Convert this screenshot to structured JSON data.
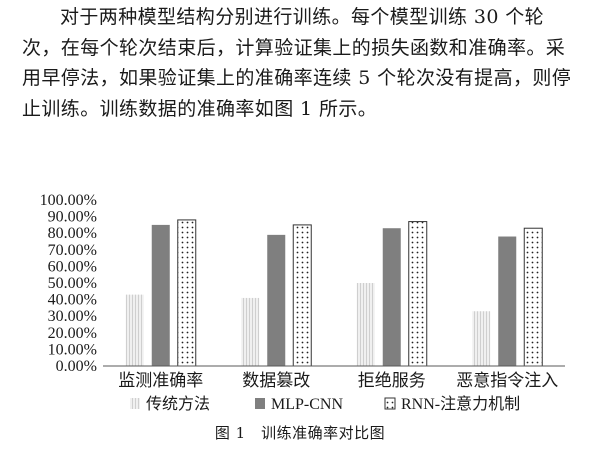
{
  "paragraph": "对于两种模型结构分别进行训练。每个模型训练 30 个轮次，在每个轮次结束后，计算验证集上的损失函数和准确率。采用早停法，如果验证集上的准确率连续 5 个轮次没有提高，则停止训练。训练数据的准确率如图 1 所示。",
  "caption": "图 1　训练准确率对比图",
  "colors": {
    "series0": "#e6e6e6",
    "series1": "#7f7f7f",
    "series2": "#ffffff",
    "axis": "#595959"
  },
  "chart_data": {
    "type": "bar",
    "categories": [
      "监测准确率",
      "数据篡改",
      "拒绝服务",
      "恶意指令注入"
    ],
    "series": [
      {
        "name": "传统方法",
        "values": [
          43,
          41,
          50,
          33
        ]
      },
      {
        "name": "MLP-CNN",
        "values": [
          85,
          79,
          83,
          78
        ]
      },
      {
        "name": "RNN-注意力机制",
        "values": [
          88,
          85,
          87,
          83
        ]
      }
    ],
    "ylim": [
      0,
      100
    ],
    "yticks": [
      "0.00%",
      "10.00%",
      "20.00%",
      "30.00%",
      "40.00%",
      "50.00%",
      "60.00%",
      "70.00%",
      "80.00%",
      "90.00%",
      "100.00%"
    ],
    "grid": false,
    "legend": "bottom",
    "xlabel": "",
    "ylabel": ""
  }
}
